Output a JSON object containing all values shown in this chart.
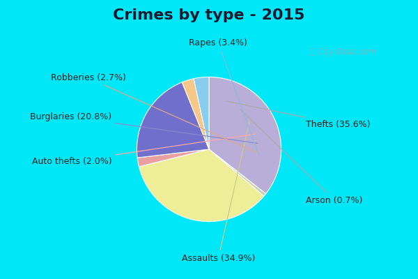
{
  "title": "Crimes by type - 2015",
  "labels_ordered": [
    "Thefts",
    "Arson",
    "Assaults",
    "Auto thefts",
    "Burglaries",
    "Robberies",
    "Rapes"
  ],
  "values_ordered": [
    35.6,
    0.7,
    34.9,
    2.0,
    20.8,
    2.7,
    3.4
  ],
  "colors_ordered": [
    "#b8aed8",
    "#c8d4b0",
    "#eeee99",
    "#e8a0a0",
    "#7070cc",
    "#f5c888",
    "#88ccee"
  ],
  "background_cyan": "#00e8f8",
  "background_main": "#d0ead8",
  "title_fontsize": 16,
  "label_fontsize": 9,
  "annotations": [
    {
      "label": "Thefts (35.6%)",
      "txt": [
        1.05,
        0.22
      ],
      "ha": "left",
      "va": "center"
    },
    {
      "label": "Arson (0.7%)",
      "txt": [
        1.05,
        -0.6
      ],
      "ha": "left",
      "va": "center"
    },
    {
      "label": "Assaults (34.9%)",
      "txt": [
        0.1,
        -1.18
      ],
      "ha": "center",
      "va": "top"
    },
    {
      "label": "Auto thefts (2.0%)",
      "txt": [
        -1.05,
        -0.18
      ],
      "ha": "right",
      "va": "center"
    },
    {
      "label": "Burglaries (20.8%)",
      "txt": [
        -1.05,
        0.3
      ],
      "ha": "right",
      "va": "center"
    },
    {
      "label": "Robberies (2.7%)",
      "txt": [
        -0.9,
        0.72
      ],
      "ha": "right",
      "va": "center"
    },
    {
      "label": "Rapes (3.4%)",
      "txt": [
        0.1,
        1.05
      ],
      "ha": "center",
      "va": "bottom"
    }
  ]
}
